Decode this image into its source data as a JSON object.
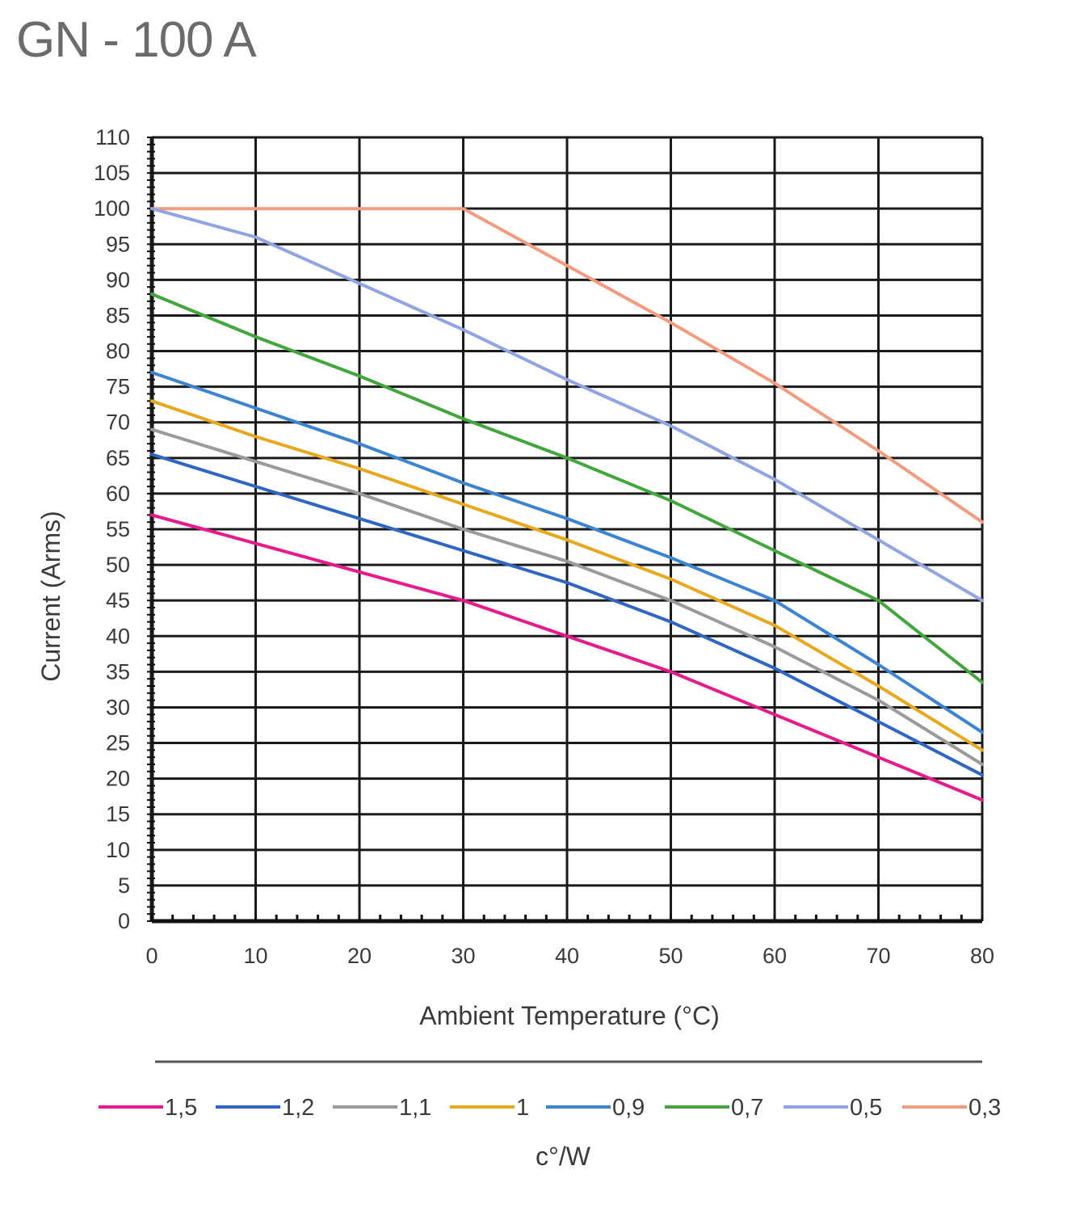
{
  "chart_data": {
    "type": "line",
    "title": "GN - 100 A",
    "xlabel": "Ambient Temperature (°C)",
    "ylabel": "Current (Arms)",
    "legend_title": "c°/W",
    "legend_position": "bottom",
    "grid": true,
    "xlim": [
      0,
      80
    ],
    "ylim": [
      0,
      110
    ],
    "x_ticks": [
      0,
      10,
      20,
      30,
      40,
      50,
      60,
      70,
      80
    ],
    "y_ticks": [
      0,
      5,
      10,
      15,
      20,
      25,
      30,
      35,
      40,
      45,
      50,
      55,
      60,
      65,
      70,
      75,
      80,
      85,
      90,
      95,
      100,
      105,
      110
    ],
    "x": [
      0,
      10,
      20,
      30,
      40,
      50,
      60,
      70,
      80
    ],
    "series": [
      {
        "name": "1,5",
        "color": "#e8198b",
        "values": [
          57,
          53,
          49,
          45,
          40,
          35,
          29,
          23,
          17
        ]
      },
      {
        "name": "1,2",
        "color": "#2f66c4",
        "values": [
          65.5,
          61,
          56.5,
          52,
          47.5,
          42,
          35.5,
          28,
          20.5
        ]
      },
      {
        "name": "1,1",
        "color": "#9a9a9a",
        "values": [
          69,
          64.5,
          60,
          55,
          50.5,
          45,
          38.5,
          31,
          22
        ]
      },
      {
        "name": "1",
        "color": "#e7a81e",
        "values": [
          73,
          68,
          63.5,
          58.5,
          53.5,
          48,
          41.5,
          33,
          24
        ]
      },
      {
        "name": "0,9",
        "color": "#3c84d0",
        "values": [
          77,
          72,
          67,
          61.5,
          56.5,
          51,
          45,
          36,
          26.5
        ]
      },
      {
        "name": "0,7",
        "color": "#42a63c",
        "values": [
          88,
          82,
          76.5,
          70.5,
          65,
          59,
          52,
          45,
          33.5
        ]
      },
      {
        "name": "0,5",
        "color": "#8fa4e0",
        "values": [
          100,
          96,
          89.5,
          83,
          76,
          69.5,
          62,
          53.5,
          45
        ]
      },
      {
        "name": "0,3",
        "color": "#f39b7f",
        "values": [
          100,
          100,
          100,
          100,
          92,
          84,
          75.5,
          66,
          56
        ]
      }
    ]
  }
}
